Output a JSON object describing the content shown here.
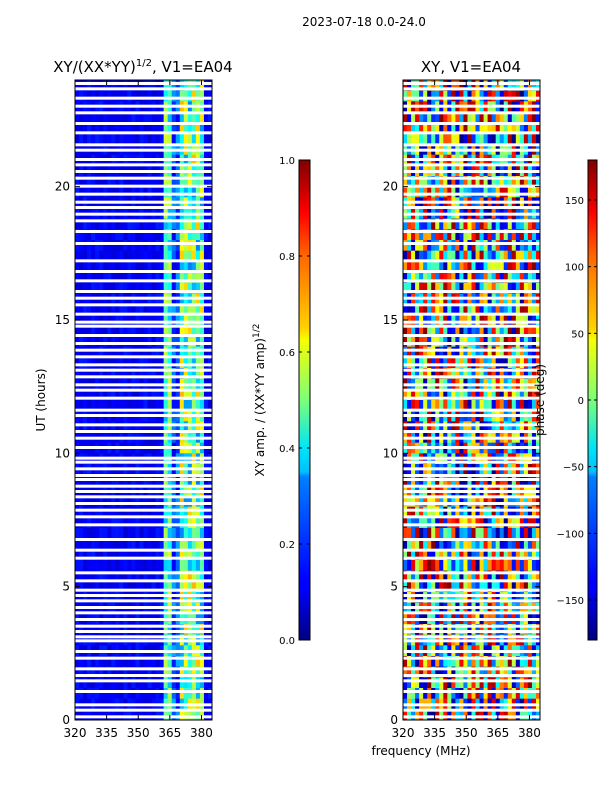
{
  "chart_data": [
    {
      "type": "heatmap",
      "title": "XY/(XX*YY)1/2, V1=EA04",
      "title_base": "XY/(XX*YY)",
      "title_sup": "1/2",
      "title_rest": ", V1=EA04",
      "xlabel": "",
      "ylabel": "UT (hours)",
      "xlim": [
        320,
        385
      ],
      "ylim": [
        0,
        24
      ],
      "xticks": [
        320,
        335,
        350,
        365,
        380
      ],
      "yticks": [
        0,
        5,
        10,
        15,
        20
      ],
      "colorbar": {
        "label": "XY amp. / (XX*YY amp)1/2",
        "label_base": "XY amp. / (XX*YY amp)",
        "label_sup": "1/2",
        "range": [
          0.0,
          1.0
        ],
        "ticks": [
          "0.0",
          "0.2",
          "0.4",
          "0.6",
          "0.8",
          "1.0"
        ],
        "tick_values": [
          0.0,
          0.2,
          0.4,
          0.6,
          0.8,
          1.0
        ],
        "colormap": "jet"
      }
    },
    {
      "type": "heatmap",
      "title": "XY, V1=EA04",
      "xlabel": "frequency (MHz)",
      "ylabel": "",
      "xlim": [
        320,
        385
      ],
      "ylim": [
        0,
        24
      ],
      "xticks": [
        320,
        335,
        350,
        365,
        380
      ],
      "yticks": [
        0,
        5,
        10,
        15,
        20
      ],
      "colorbar": {
        "label": "phase (deg)",
        "range": [
          -180,
          180
        ],
        "ticks": [
          "−150",
          "−100",
          "−50",
          "0",
          "50",
          "100",
          "150"
        ],
        "tick_values": [
          -150,
          -100,
          -50,
          0,
          50,
          100,
          150
        ],
        "colormap": "jet"
      }
    }
  ],
  "suptitle": "2023-07-18 0.0-24.0",
  "gap_hours": [
    0.1,
    0.35,
    0.55,
    1.05,
    1.45,
    1.65,
    1.9,
    2.3,
    2.55,
    2.95,
    3.1,
    3.3,
    3.5,
    3.75,
    4.0,
    4.2,
    4.45,
    4.65,
    4.85,
    5.2,
    5.5,
    6.05,
    6.35,
    6.75,
    7.3,
    7.6,
    7.85,
    8.1,
    8.35,
    8.55,
    8.75,
    9.0,
    9.15,
    9.4,
    9.65,
    9.8,
    10.2,
    10.55,
    10.8,
    11.05,
    11.4,
    11.6,
    12.05,
    12.35,
    12.55,
    12.85,
    13.1,
    13.3,
    13.6,
    13.85,
    14.1,
    14.4,
    14.75,
    14.9,
    15.2,
    15.55,
    15.8,
    16.05,
    16.45,
    16.8,
    17.2,
    17.85,
    18.3,
    18.7,
    18.95,
    19.2,
    19.4,
    19.7,
    20.0,
    20.3,
    20.55,
    20.8,
    21.0,
    21.35,
    21.55,
    22.0,
    22.35,
    22.75,
    23.0,
    23.3,
    23.65,
    23.85
  ]
}
